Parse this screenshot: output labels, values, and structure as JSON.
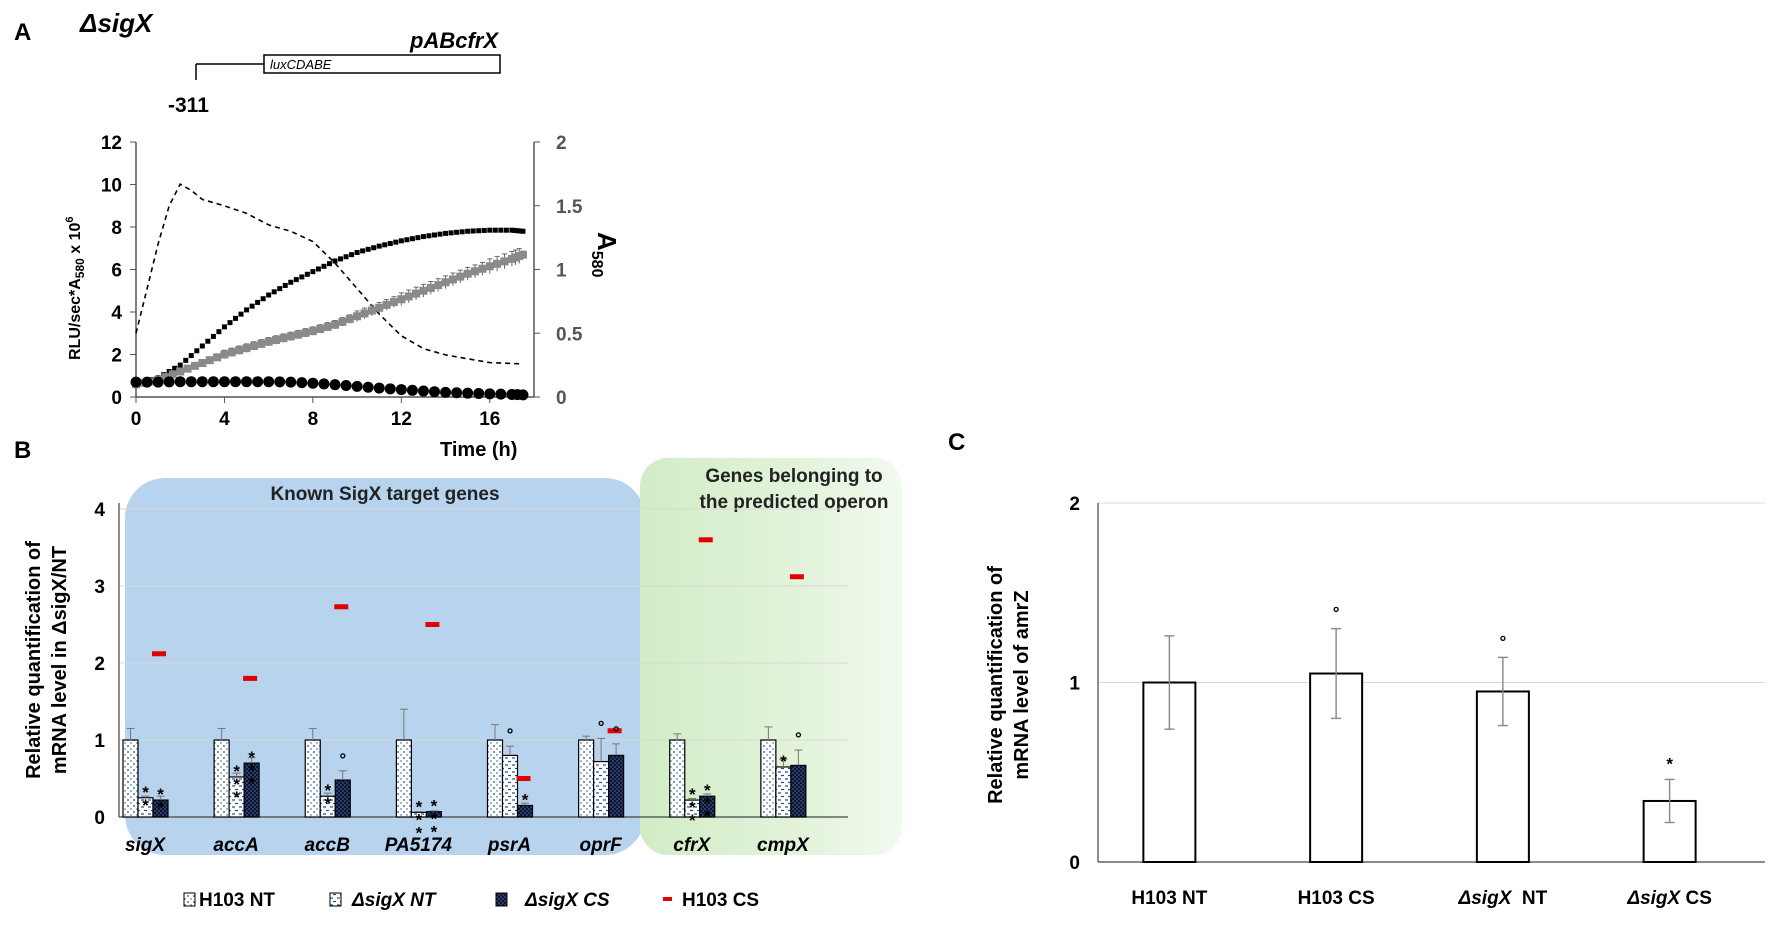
{
  "figure": {
    "panels": [
      {
        "letter": "A",
        "construct": {
          "strain": "ΔsigX",
          "plasmid": "pABcfrX",
          "gene_box": "luxCDABE",
          "position": "-311"
        }
      },
      {
        "letter": "B",
        "region_known": "Known SigX target genes",
        "region_operon_line1": "Genes belonging to",
        "region_operon_line2": "the predicted operon",
        "legend": [
          {
            "label": "H103 NT",
            "marker": "dotted-white-box"
          },
          {
            "label": "ΔsigX NT",
            "marker": "dashed-white-box"
          },
          {
            "label": "ΔsigX CS",
            "marker": "dark-checker-box"
          },
          {
            "label": "H103 CS",
            "marker": "red-dash"
          }
        ]
      },
      {
        "letter": "C"
      }
    ]
  },
  "chart_data": [
    {
      "id": "A",
      "type": "line",
      "xlabel": "Time (h)",
      "ylabel_left": "RLU/sec*A580 x 10^6",
      "ylabel_right": "A580",
      "xlim": [
        0,
        18
      ],
      "xticks": [
        0,
        4,
        8,
        12,
        16
      ],
      "ylim_left": [
        0,
        12
      ],
      "yticks_left": [
        0,
        2,
        4,
        6,
        8,
        10,
        12
      ],
      "ylim_right": [
        0,
        2
      ],
      "yticks_right": [
        0,
        0.5,
        1,
        1.5,
        2
      ],
      "series": [
        {
          "name": "Growth A580 (dashed)",
          "axis": "right",
          "style": "dashed",
          "x": [
            0,
            0.5,
            1,
            1.5,
            2,
            2.5,
            3,
            4,
            5,
            6,
            7,
            8,
            9,
            10,
            11,
            12,
            13,
            14,
            15,
            16,
            17.5
          ],
          "y": [
            0.5,
            0.85,
            1.2,
            1.5,
            1.67,
            1.62,
            1.55,
            1.5,
            1.44,
            1.35,
            1.3,
            1.22,
            1.05,
            0.85,
            0.65,
            0.48,
            0.38,
            0.33,
            0.3,
            0.27,
            0.26
          ]
        },
        {
          "name": "Luminescence (black squares)",
          "axis": "left",
          "style": "dotted-squares",
          "x": [
            0,
            1,
            2,
            3,
            4,
            5,
            6,
            7,
            8,
            9,
            10,
            11,
            12,
            13,
            14,
            15,
            16,
            17,
            17.5
          ],
          "y": [
            0.6,
            0.9,
            1.5,
            2.4,
            3.3,
            4.1,
            4.8,
            5.4,
            5.9,
            6.4,
            6.8,
            7.1,
            7.35,
            7.55,
            7.7,
            7.8,
            7.85,
            7.85,
            7.8
          ]
        },
        {
          "name": "Luminescence (grey squares with error bars)",
          "axis": "left",
          "style": "grey-squares",
          "x": [
            0,
            1,
            2,
            3,
            4,
            5,
            6,
            7,
            8,
            9,
            10,
            11,
            12,
            13,
            14,
            15,
            16,
            17,
            17.5
          ],
          "y": [
            0.6,
            0.8,
            1.2,
            1.6,
            2.0,
            2.3,
            2.6,
            2.85,
            3.1,
            3.4,
            3.8,
            4.2,
            4.6,
            5.0,
            5.4,
            5.8,
            6.15,
            6.5,
            6.7
          ],
          "err": [
            0.1,
            0.1,
            0.15,
            0.15,
            0.2,
            0.2,
            0.2,
            0.2,
            0.2,
            0.2,
            0.25,
            0.25,
            0.3,
            0.3,
            0.3,
            0.3,
            0.35,
            0.35,
            0.35
          ]
        },
        {
          "name": "Background (black circles)",
          "axis": "left",
          "style": "black-circles",
          "x": [
            0,
            1,
            2,
            3,
            4,
            5,
            6,
            7,
            8,
            9,
            10,
            11,
            12,
            13,
            14,
            15,
            16,
            17,
            17.5
          ],
          "y": [
            0.7,
            0.7,
            0.72,
            0.72,
            0.72,
            0.72,
            0.72,
            0.7,
            0.65,
            0.58,
            0.5,
            0.42,
            0.35,
            0.28,
            0.22,
            0.18,
            0.15,
            0.12,
            0.1
          ]
        }
      ]
    },
    {
      "id": "B",
      "type": "bar",
      "ylabel_line1": "Relative quantification of",
      "ylabel_line2": "mRNA level in ΔsigX/NT",
      "ylim": [
        0,
        4
      ],
      "yticks": [
        0,
        1,
        2,
        3,
        4
      ],
      "categories": [
        "sigX",
        "accA",
        "accB",
        "PA5174",
        "psrA",
        "oprF",
        "cfrX",
        "cmpX"
      ],
      "series": [
        {
          "name": "H103 NT",
          "values": [
            1,
            1,
            1,
            1,
            1,
            1,
            1,
            1
          ],
          "err": [
            0.15,
            0.15,
            0.15,
            0.4,
            0.2,
            0.05,
            0.08,
            0.17
          ]
        },
        {
          "name": "ΔsigX NT",
          "values": [
            0.25,
            0.52,
            0.27,
            0.06,
            0.8,
            0.72,
            0.22,
            0.65
          ],
          "err": [
            0.02,
            0.05,
            0.04,
            0.01,
            0.12,
            0.3,
            0.02,
            0.1
          ]
        },
        {
          "name": "ΔsigX CS",
          "values": [
            0.22,
            0.7,
            0.48,
            0.07,
            0.15,
            0.8,
            0.27,
            0.67
          ],
          "err": [
            0.05,
            0.07,
            0.12,
            0.01,
            0.03,
            0.15,
            0.03,
            0.2
          ]
        },
        {
          "name": "H103 CS",
          "values": [
            2.12,
            1.8,
            2.73,
            2.5,
            0.5,
            1.12,
            3.6,
            3.12
          ]
        }
      ],
      "annotations": [
        {
          "category": "sigX",
          "series": "ΔsigX NT",
          "text": "**"
        },
        {
          "category": "sigX",
          "series": "ΔsigX CS",
          "text": "**"
        },
        {
          "category": "accA",
          "series": "ΔsigX NT",
          "text": "***"
        },
        {
          "category": "accA",
          "series": "ΔsigX CS",
          "text": "***"
        },
        {
          "category": "accB",
          "series": "ΔsigX NT",
          "text": "**"
        },
        {
          "category": "accB",
          "series": "ΔsigX CS",
          "text": "°"
        },
        {
          "category": "PA5174",
          "series": "ΔsigX NT",
          "text": "***"
        },
        {
          "category": "PA5174",
          "series": "ΔsigX CS",
          "text": "***"
        },
        {
          "category": "psrA",
          "series": "ΔsigX NT",
          "text": "°"
        },
        {
          "category": "psrA",
          "series": "ΔsigX CS",
          "text": "*"
        },
        {
          "category": "oprF",
          "series": "ΔsigX NT",
          "text": "°"
        },
        {
          "category": "oprF",
          "series": "ΔsigX CS",
          "text": "°"
        },
        {
          "category": "cfrX",
          "series": "ΔsigX NT",
          "text": "***"
        },
        {
          "category": "cfrX",
          "series": "ΔsigX CS",
          "text": "***"
        },
        {
          "category": "cmpX",
          "series": "ΔsigX NT",
          "text": "*"
        },
        {
          "category": "cmpX",
          "series": "ΔsigX CS",
          "text": "°"
        }
      ]
    },
    {
      "id": "C",
      "type": "bar",
      "ylabel_line1": "Relative quantification of",
      "ylabel_line2": "mRNA level of amrZ",
      "ylim": [
        0,
        2
      ],
      "yticks": [
        0,
        1,
        2
      ],
      "grid": true,
      "categories": [
        "H103 NT",
        "H103 CS",
        "ΔsigX  NT",
        "ΔsigX CS"
      ],
      "values": [
        1.0,
        1.05,
        0.95,
        0.34
      ],
      "err": [
        0.26,
        0.25,
        0.19,
        0.12
      ],
      "annotations": [
        "",
        "°",
        "°",
        "*"
      ]
    }
  ]
}
